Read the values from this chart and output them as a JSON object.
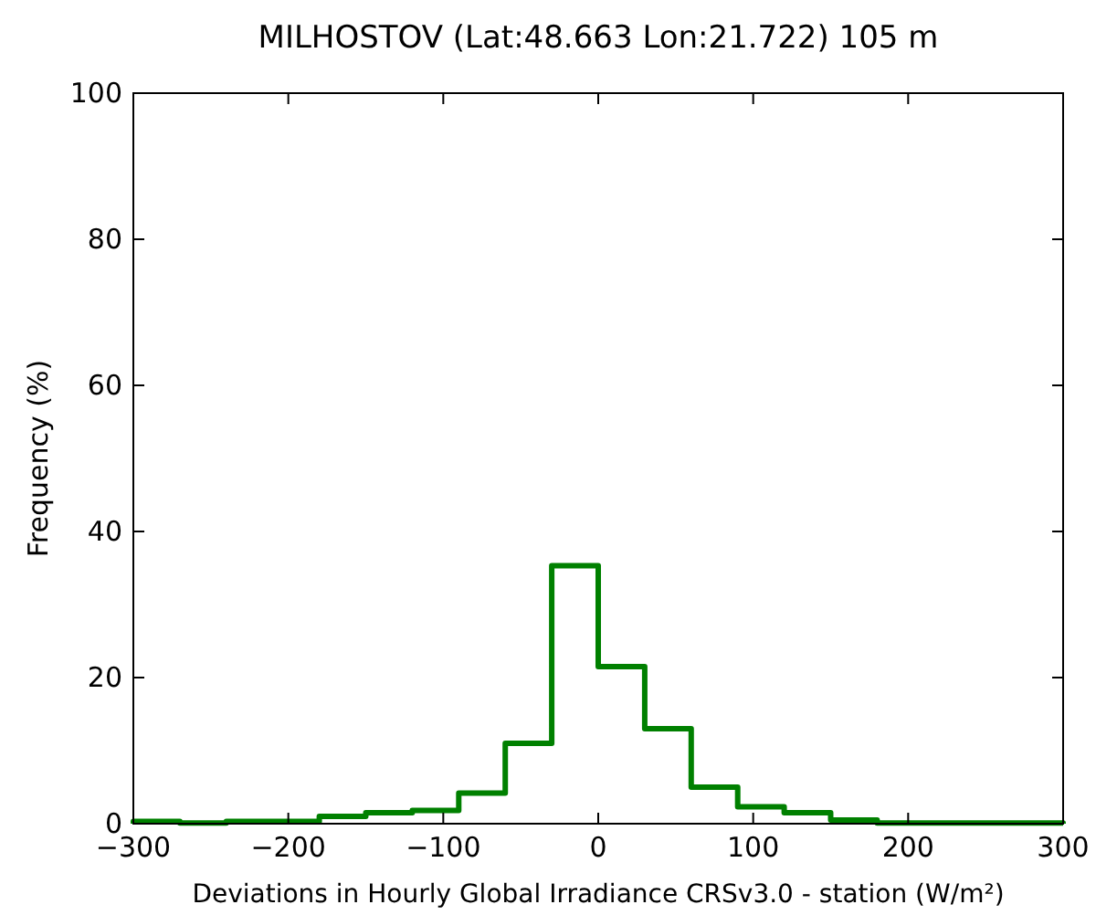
{
  "chart_data": {
    "type": "histogram",
    "title": "MILHOSTOV (Lat:48.663 Lon:21.722) 105 m",
    "xlabel": "Deviations in Hourly Global Irradiance CRSv3.0 - station (W/m²)",
    "ylabel": "Frequency (%)",
    "bins": [
      -300,
      -270,
      -240,
      -210,
      -180,
      -150,
      -120,
      -90,
      -60,
      -30,
      0,
      30,
      60,
      90,
      120,
      150,
      180,
      210,
      240,
      270,
      300
    ],
    "values": [
      0.3,
      0.1,
      0.3,
      0.3,
      1.0,
      1.5,
      1.8,
      4.2,
      11,
      35.3,
      21.5,
      13,
      5,
      2.3,
      1.5,
      0.5,
      0.1,
      0.1,
      0.1,
      0.1
    ],
    "color": "#008000",
    "xlim": [
      -300,
      300
    ],
    "xticks": [
      -300,
      -200,
      -100,
      0,
      100,
      200,
      300
    ],
    "ylim": [
      0,
      100
    ],
    "yticks": [
      0,
      20,
      40,
      60,
      80,
      100
    ],
    "grid": false
  }
}
